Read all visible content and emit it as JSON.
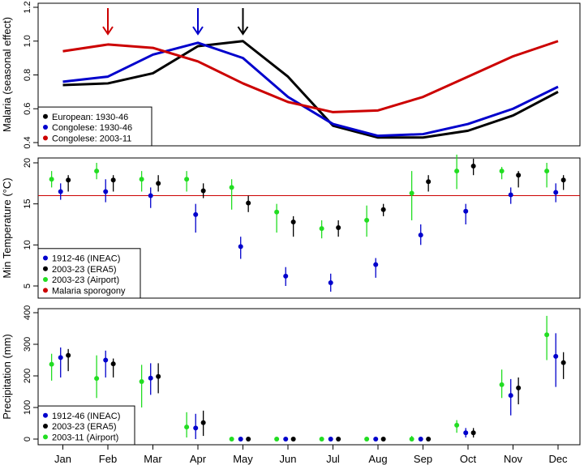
{
  "months": [
    "Jan",
    "Feb",
    "Mar",
    "Apr",
    "May",
    "Jun",
    "Jul",
    "Aug",
    "Sep",
    "Oct",
    "Nov",
    "Dec"
  ],
  "chart_data": [
    {
      "type": "line",
      "ylabel": "Malaria (seasonal effect)",
      "ylim": [
        0.4,
        1.2
      ],
      "yticks": [
        0.4,
        0.6,
        0.8,
        1.0,
        1.2
      ],
      "ytick_labels": [
        "0.4",
        "0.6",
        "0.8",
        "1.0",
        "1.2"
      ],
      "legend": {
        "position": "bottom-left"
      },
      "series": [
        {
          "name": "European: 1930-46",
          "color": "#000000",
          "values": [
            0.74,
            0.75,
            0.81,
            0.97,
            1.0,
            0.79,
            0.5,
            0.43,
            0.43,
            0.47,
            0.56,
            0.7
          ]
        },
        {
          "name": "Congolese: 1930-46",
          "color": "#0000cc",
          "values": [
            0.76,
            0.79,
            0.92,
            0.99,
            0.9,
            0.67,
            0.51,
            0.44,
            0.45,
            0.51,
            0.6,
            0.73
          ]
        },
        {
          "name": "Congolese: 2003-11",
          "color": "#cc0000",
          "values": [
            0.94,
            0.98,
            0.96,
            0.88,
            0.75,
            0.64,
            0.58,
            0.59,
            0.67,
            0.79,
            0.91,
            1.0
          ]
        }
      ],
      "arrows": [
        {
          "month": "Feb",
          "color": "#cc0000"
        },
        {
          "month": "Apr",
          "color": "#0000cc"
        },
        {
          "month": "May",
          "color": "#000000"
        }
      ]
    },
    {
      "type": "scatter",
      "ylabel": "Min Temperature (°C)",
      "ylim": [
        3.5,
        20.5
      ],
      "yticks": [
        5,
        10,
        15,
        20
      ],
      "ytick_labels": [
        "5",
        "10",
        "15",
        "20"
      ],
      "hline": {
        "value": 16,
        "color": "#cc0000",
        "label": "Malaria sporogony"
      },
      "legend": {
        "position": "bottom-left"
      },
      "series": [
        {
          "name": "2003-23 (Airport)",
          "color": "#22dd22",
          "offset": -0.25,
          "values": [
            18.0,
            19.0,
            18.0,
            18.0,
            17.0,
            14.0,
            12.0,
            13.0,
            16.3,
            19.0,
            19.0,
            19.0
          ],
          "low": [
            17.0,
            18.0,
            16.5,
            16.5,
            14.3,
            11.5,
            10.8,
            11.0,
            13.0,
            16.8,
            18.0,
            17.0
          ],
          "high": [
            19.0,
            20.0,
            19.0,
            19.0,
            18.0,
            15.0,
            13.0,
            14.8,
            19.0,
            21.0,
            19.5,
            20.0
          ]
        },
        {
          "name": "1912-46 (INEAC)",
          "color": "#0000cc",
          "offset": -0.05,
          "values": [
            16.5,
            16.5,
            16.0,
            13.7,
            9.8,
            6.2,
            5.4,
            7.6,
            11.2,
            14.1,
            16.1,
            16.4
          ],
          "low": [
            15.5,
            15.2,
            14.5,
            11.5,
            8.3,
            5.0,
            4.3,
            6.0,
            10.0,
            12.5,
            15.0,
            15.2
          ],
          "high": [
            17.5,
            18.0,
            17.0,
            15.0,
            11.0,
            7.3,
            6.5,
            8.4,
            12.5,
            15.0,
            17.0,
            17.5
          ]
        },
        {
          "name": "2003-23 (ERA5)",
          "color": "#000000",
          "offset": 0.12,
          "values": [
            17.9,
            17.9,
            17.5,
            16.6,
            15.1,
            12.8,
            12.1,
            14.3,
            17.7,
            19.6,
            18.5,
            17.9
          ],
          "low": [
            16.5,
            16.5,
            16.5,
            15.7,
            14.0,
            11.0,
            11.0,
            13.5,
            16.5,
            18.5,
            17.0,
            16.7
          ],
          "high": [
            18.5,
            18.5,
            18.5,
            17.5,
            16.0,
            13.5,
            13.0,
            15.0,
            18.5,
            20.5,
            19.0,
            18.5
          ]
        }
      ],
      "legend_order": [
        "1912-46 (INEAC)",
        "2003-23 (ERA5)",
        "2003-23 (Airport)",
        "Malaria sporogony"
      ]
    },
    {
      "type": "scatter",
      "ylabel": "Precipitation (mm)",
      "ylim": [
        -10,
        410
      ],
      "yticks": [
        0,
        100,
        200,
        300,
        400
      ],
      "ytick_labels": [
        "0",
        "100",
        "200",
        "300",
        "400"
      ],
      "legend": {
        "position": "bottom-left"
      },
      "series": [
        {
          "name": "2003-11 (Airport)",
          "color": "#22dd22",
          "offset": -0.25,
          "values": [
            237,
            192,
            182,
            38,
            0,
            0,
            0,
            0,
            0,
            44,
            172,
            330
          ],
          "low": [
            185,
            130,
            100,
            5,
            0,
            0,
            0,
            0,
            -5,
            20,
            130,
            250
          ],
          "high": [
            270,
            265,
            235,
            85,
            0,
            0,
            0,
            0,
            10,
            60,
            220,
            390
          ]
        },
        {
          "name": "1912-46 (INEAC)",
          "color": "#0000cc",
          "offset": -0.05,
          "values": [
            258,
            250,
            193,
            35,
            0,
            0,
            0,
            0,
            0,
            20,
            138,
            262
          ],
          "low": [
            195,
            195,
            140,
            0,
            0,
            0,
            0,
            0,
            0,
            5,
            75,
            165
          ],
          "high": [
            290,
            280,
            240,
            80,
            0,
            0,
            0,
            0,
            0,
            35,
            190,
            335
          ]
        },
        {
          "name": "2003-23 (ERA5)",
          "color": "#000000",
          "offset": 0.12,
          "values": [
            265,
            238,
            198,
            52,
            0,
            0,
            0,
            0,
            0,
            20,
            162,
            242
          ],
          "low": [
            215,
            195,
            145,
            10,
            0,
            0,
            0,
            0,
            0,
            5,
            110,
            190
          ],
          "high": [
            285,
            255,
            240,
            90,
            0,
            0,
            0,
            0,
            0,
            35,
            195,
            275
          ]
        }
      ],
      "legend_order": [
        "1912-46 (INEAC)",
        "2003-23 (ERA5)",
        "2003-11 (Airport)"
      ]
    }
  ]
}
